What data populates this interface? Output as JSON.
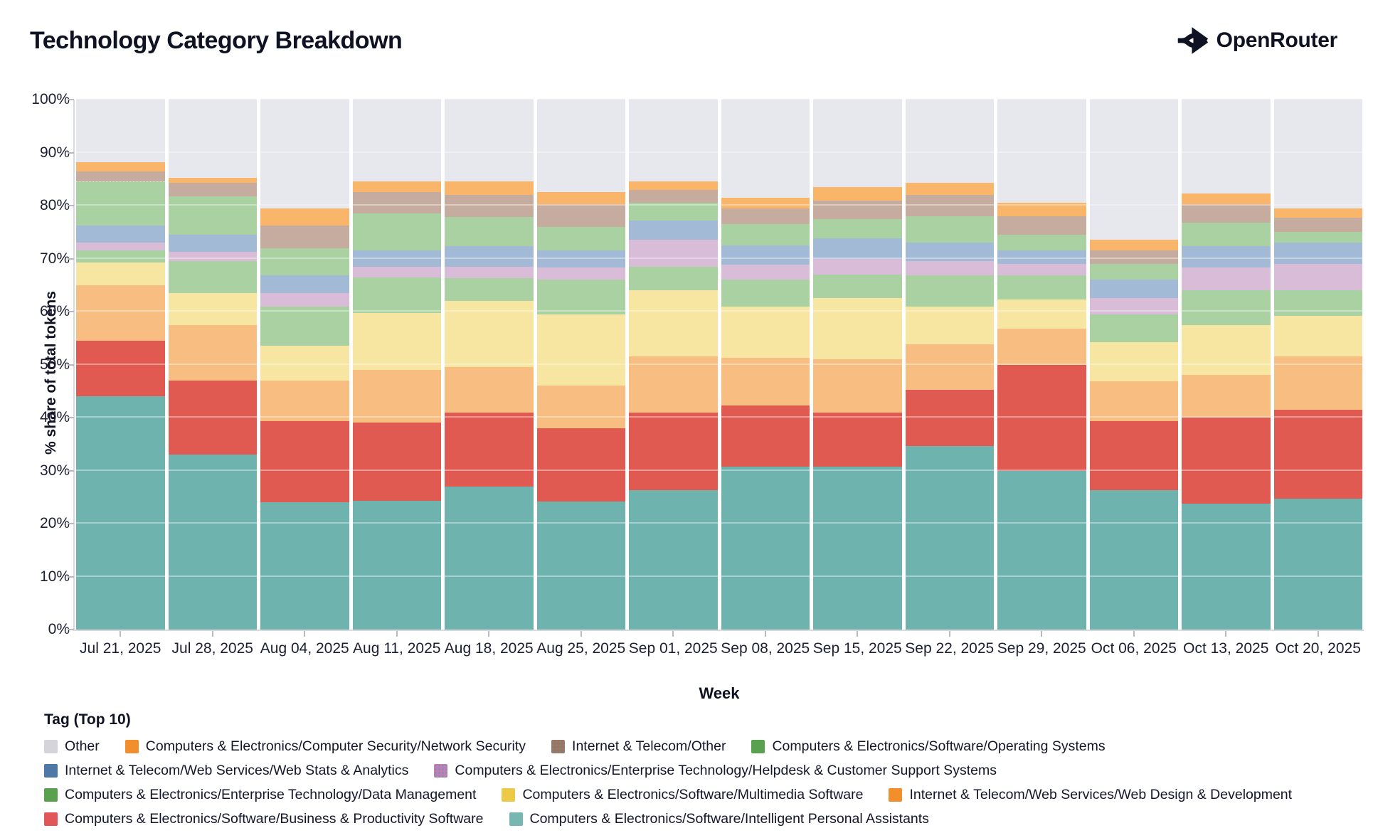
{
  "header": {
    "title": "Technology Category Breakdown",
    "brand": "OpenRouter"
  },
  "chart_data": {
    "type": "bar",
    "stacked": true,
    "title": "Technology Category Breakdown",
    "xlabel": "Week",
    "ylabel": "% share of total tokens",
    "ylim": [
      0,
      100
    ],
    "grid": true,
    "ytick_labels": [
      "0%",
      "10%",
      "20%",
      "30%",
      "40%",
      "50%",
      "60%",
      "70%",
      "80%",
      "90%",
      "100%"
    ],
    "legend_title": "Tag (Top 10)",
    "legend_position": "bottom",
    "categories": [
      "Jul 21, 2025",
      "Jul 28, 2025",
      "Aug 04, 2025",
      "Aug 11, 2025",
      "Aug 18, 2025",
      "Aug 25, 2025",
      "Sep 01, 2025",
      "Sep 08, 2025",
      "Sep 15, 2025",
      "Sep 22, 2025",
      "Sep 29, 2025",
      "Oct 06, 2025",
      "Oct 13, 2025",
      "Oct 20, 2025"
    ],
    "series": [
      {
        "name": "Computers & Electronics/Software/Intelligent Personal Assistants",
        "bar_color": "#6fb3ae",
        "swatch_color": "#76b7b2",
        "pattern": "none",
        "values": [
          44.0,
          33.0,
          24.0,
          24.3,
          27.0,
          24.2,
          26.3,
          30.7,
          30.7,
          34.7,
          30.0,
          26.3,
          23.7,
          24.7
        ]
      },
      {
        "name": "Computers & Electronics/Software/Business & Productivity Software",
        "bar_color": "#e15a52",
        "swatch_color": "#e15759",
        "pattern": "none",
        "values": [
          10.5,
          14.0,
          15.3,
          14.7,
          14.0,
          13.8,
          14.7,
          11.6,
          10.3,
          10.5,
          20.0,
          13.0,
          16.3,
          16.8
        ]
      },
      {
        "name": "Internet & Telecom/Web Services/Web Design & Development",
        "bar_color": "#f8bd80",
        "swatch_color": "#f28e2b",
        "pattern": "none",
        "values": [
          10.5,
          10.5,
          7.7,
          10.0,
          8.5,
          8.0,
          10.5,
          9.0,
          10.0,
          8.6,
          6.8,
          7.5,
          8.0,
          10.0
        ]
      },
      {
        "name": "Computers & Electronics/Software/Multimedia Software",
        "bar_color": "#f6e6a2",
        "swatch_color": "#edc948",
        "pattern": "none",
        "values": [
          4.3,
          6.0,
          6.5,
          10.8,
          12.5,
          13.5,
          12.5,
          9.7,
          11.5,
          7.2,
          5.5,
          7.4,
          9.5,
          7.7
        ]
      },
      {
        "name": "Computers & Electronics/Enterprise Technology/Data Management",
        "bar_color": "#a9d1a2",
        "swatch_color": "#59a14f",
        "pattern": "none",
        "values": [
          2.2,
          6.0,
          7.5,
          6.7,
          4.3,
          6.5,
          4.5,
          5.0,
          4.5,
          5.8,
          4.5,
          5.3,
          6.5,
          4.8
        ]
      },
      {
        "name": "Computers & Electronics/Enterprise Technology/Helpdesk & Customer Support Systems",
        "bar_color": "#d9bcd8",
        "swatch_color": "#bb80b5",
        "pattern": "dots",
        "values": [
          1.5,
          1.8,
          2.5,
          2.0,
          2.2,
          2.3,
          5.0,
          2.8,
          3.0,
          2.7,
          2.2,
          3.0,
          4.3,
          5.0
        ]
      },
      {
        "name": "Internet & Telecom/Web Services/Web Stats & Analytics",
        "bar_color": "#a3bad7",
        "swatch_color": "#4e79a7",
        "pattern": "none",
        "values": [
          3.3,
          3.2,
          3.3,
          3.0,
          3.8,
          3.2,
          3.7,
          3.7,
          3.8,
          3.5,
          2.5,
          3.5,
          4.0,
          4.0
        ]
      },
      {
        "name": "Computers & Electronics/Software/Operating Systems",
        "bar_color": "#a9d1a2",
        "swatch_color": "#59a14f",
        "pattern": "none",
        "values": [
          8.2,
          7.3,
          5.2,
          7.0,
          5.5,
          4.5,
          3.3,
          4.0,
          3.7,
          5.0,
          3.0,
          3.0,
          4.5,
          2.0
        ]
      },
      {
        "name": "Internet & Telecom/Other",
        "bar_color": "#c6ac9e",
        "swatch_color": "#9c755f",
        "pattern": "dots",
        "values": [
          2.0,
          2.5,
          4.3,
          4.0,
          4.2,
          4.3,
          2.5,
          3.0,
          3.5,
          4.0,
          3.5,
          2.5,
          3.5,
          2.7
        ]
      },
      {
        "name": "Computers & Electronics/Computer Security/Network Security",
        "bar_color": "#f9b569",
        "swatch_color": "#f28e2b",
        "pattern": "none",
        "values": [
          1.7,
          1.0,
          3.2,
          2.0,
          2.5,
          2.2,
          1.5,
          2.0,
          2.5,
          2.3,
          2.5,
          2.0,
          2.0,
          1.8
        ]
      },
      {
        "name": "Other",
        "bar_color": "#e7e7ee",
        "swatch_color": "#d4d4da",
        "pattern": "none",
        "values": [
          11.8,
          14.7,
          20.5,
          15.5,
          15.5,
          17.5,
          15.5,
          18.5,
          16.5,
          15.7,
          19.5,
          26.5,
          17.7,
          20.5
        ]
      }
    ],
    "legend_rows": [
      [
        10,
        9,
        8,
        7
      ],
      [
        6,
        5
      ],
      [
        4,
        3,
        2
      ],
      [
        1,
        0
      ]
    ]
  }
}
